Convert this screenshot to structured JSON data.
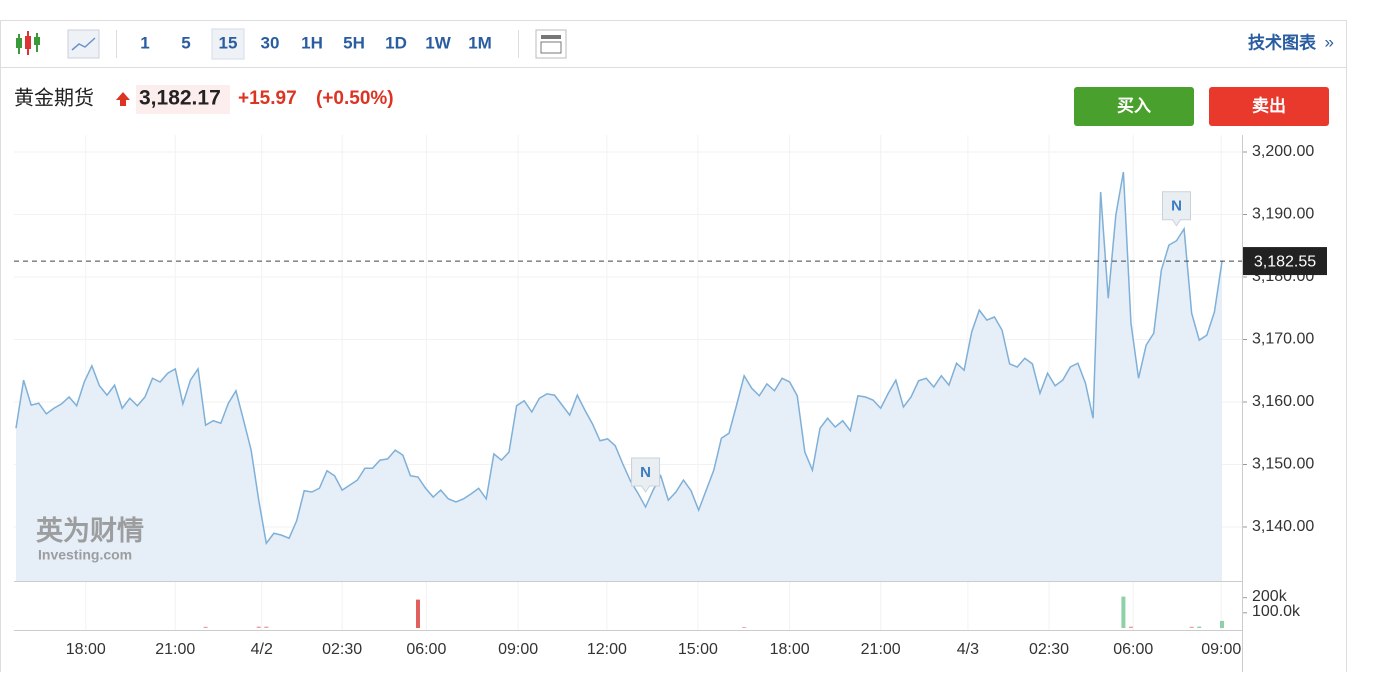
{
  "toolbar": {
    "intervals": [
      "1",
      "5",
      "15",
      "30",
      "1H",
      "5H",
      "1D",
      "1W",
      "1M"
    ],
    "active_interval": "15",
    "right_link": "技术图表",
    "right_arrow": "»"
  },
  "header": {
    "name": "黄金期货",
    "price": "3,182.17",
    "change": "+15.97",
    "change_pct": "(+0.50%)"
  },
  "buttons": {
    "buy": "买入",
    "sell": "卖出"
  },
  "watermark": {
    "brand": "英为财情",
    "site": "Investing.com"
  },
  "chart_data": [
    {
      "type": "area",
      "color": "#7fb0d8",
      "fill": "#e6eef7",
      "grid": true,
      "values": [
        3155.8,
        3163.5,
        3159.5,
        3159.8,
        3158.1,
        3159.0,
        3159.7,
        3160.8,
        3159.4,
        3163.2,
        3165.8,
        3162.6,
        3161.1,
        3162.7,
        3159.0,
        3160.6,
        3159.4,
        3160.8,
        3163.8,
        3163.2,
        3164.6,
        3165.3,
        3159.7,
        3163.5,
        3165.3,
        3156.3,
        3157.0,
        3156.6,
        3159.8,
        3161.8,
        3157.1,
        3152.3,
        3144.3,
        3137.4,
        3139.0,
        3138.7,
        3138.2,
        3141.0,
        3145.8,
        3145.6,
        3146.2,
        3149.0,
        3148.2,
        3145.9,
        3146.7,
        3147.5,
        3149.4,
        3149.4,
        3150.7,
        3150.9,
        3152.3,
        3151.5,
        3148.2,
        3148.0,
        3146.2,
        3144.8,
        3145.9,
        3144.5,
        3144.0,
        3144.5,
        3145.3,
        3146.2,
        3144.5,
        3151.7,
        3150.7,
        3152.0,
        3159.4,
        3160.2,
        3158.4,
        3160.6,
        3161.3,
        3161.1,
        3159.5,
        3157.9,
        3161.1,
        3158.7,
        3156.5,
        3153.8,
        3154.1,
        3153.0,
        3150.1,
        3147.4,
        3145.4,
        3143.2,
        3145.9,
        3148.2,
        3144.3,
        3145.6,
        3147.5,
        3145.8,
        3142.7,
        3145.9,
        3149.1,
        3154.2,
        3155.0,
        3159.5,
        3164.2,
        3162.2,
        3161.0,
        3162.9,
        3161.8,
        3163.8,
        3163.2,
        3161.0,
        3152.0,
        3149.1,
        3155.8,
        3157.4,
        3156.0,
        3157.0,
        3155.4,
        3161.0,
        3160.8,
        3160.3,
        3159.0,
        3161.4,
        3163.5,
        3159.2,
        3160.8,
        3163.4,
        3163.8,
        3162.4,
        3164.2,
        3162.7,
        3166.2,
        3165.1,
        3171.2,
        3174.7,
        3173.1,
        3173.6,
        3171.5,
        3166.1,
        3165.6,
        3167.0,
        3166.1,
        3161.4,
        3164.6,
        3162.6,
        3163.5,
        3165.6,
        3166.2,
        3163.0,
        3157.4,
        3193.6,
        3176.6,
        3189.9,
        3196.8,
        3172.6,
        3163.8,
        3169.1,
        3171.0,
        3181.1,
        3185.1,
        3185.8,
        3187.7,
        3174.2,
        3169.9,
        3170.7,
        3174.4,
        3182.5
      ],
      "xlim": [
        0,
        159
      ],
      "xticks": [
        {
          "value": 9.2,
          "label": "18:00"
        },
        {
          "value": 21.0,
          "label": "21:00"
        },
        {
          "value": 32.4,
          "label": "4/2"
        },
        {
          "value": 43.0,
          "label": "02:30"
        },
        {
          "value": 54.1,
          "label": "06:00"
        },
        {
          "value": 66.2,
          "label": "09:00"
        },
        {
          "value": 77.9,
          "label": "12:00"
        },
        {
          "value": 89.9,
          "label": "15:00"
        },
        {
          "value": 102.0,
          "label": "18:00"
        },
        {
          "value": 114.0,
          "label": "21:00"
        },
        {
          "value": 125.5,
          "label": "4/3"
        },
        {
          "value": 136.2,
          "label": "02:30"
        },
        {
          "value": 147.3,
          "label": "06:00"
        },
        {
          "value": 158.9,
          "label": "09:00"
        }
      ],
      "ylim": [
        3131.36,
        3202.72
      ],
      "yticks": [
        {
          "value": 3140,
          "label": "3,140.00"
        },
        {
          "value": 3150,
          "label": "3,150.00"
        },
        {
          "value": 3160,
          "label": "3,160.00"
        },
        {
          "value": 3170,
          "label": "3,170.00"
        },
        {
          "value": 3180,
          "label": "3,180.00"
        },
        {
          "value": 3190,
          "label": "3,190.00"
        },
        {
          "value": 3200,
          "label": "3,200.00"
        }
      ],
      "current_price": {
        "value": 3182.55,
        "label": "3,182.55"
      },
      "annotations": [
        {
          "text": "N",
          "x": 83
        },
        {
          "text": "N",
          "x": 153
        }
      ]
    },
    {
      "type": "bar",
      "x": [
        25,
        32,
        33,
        53,
        96,
        146,
        147,
        155,
        156,
        159
      ],
      "values": [
        8000,
        9000,
        9000,
        187000,
        6000,
        207000,
        9000,
        8000,
        9000,
        47000
      ],
      "colors": [
        "#e8a0a0",
        "#e8a0a0",
        "#e8a0a0",
        "#e06060",
        "#e8a0a0",
        "#8fd0a8",
        "#e8a0a0",
        "#e8a0a0",
        "#8fd0a8",
        "#8fd0a8"
      ],
      "ylim": [
        0,
        290000
      ],
      "yticks": [
        {
          "value": 100000,
          "label": "100.0k"
        },
        {
          "value": 200000,
          "label": "200k"
        }
      ]
    }
  ]
}
